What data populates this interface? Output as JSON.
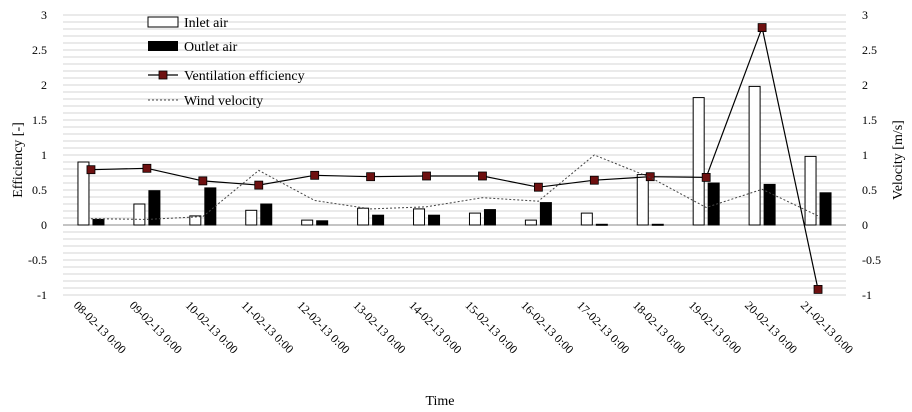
{
  "chart_data": {
    "type": "bar",
    "title": "",
    "xlabel": "Time",
    "ylabel": "Efficiency  [-]",
    "y2label": "Velocity  [m/s]",
    "ylim": [
      -1,
      3
    ],
    "y2lim": [
      -1,
      3
    ],
    "yticks": [
      "-1",
      "-0.5",
      "0",
      "0.5",
      "1",
      "1.5",
      "2",
      "2.5",
      "3"
    ],
    "grid": true,
    "legend_position": "top-left",
    "categories": [
      "08-02-13 0:00",
      "09-02-13 0:00",
      "10-02-13 0:00",
      "11-02-13 0:00",
      "12-02-13 0:00",
      "13-02-13 0:00",
      "14-02-13 0:00",
      "15-02-13 0:00",
      "16-02-13 0:00",
      "17-02-13 0:00",
      "18-02-13 0:00",
      "19-02-13 0:00",
      "20-02-13 0:00",
      "21-02-13 0:00"
    ],
    "series": [
      {
        "name": "Inlet air",
        "kind": "bar",
        "axis": "left",
        "color": "#ffffff",
        "values": [
          0.9,
          0.3,
          0.13,
          0.21,
          0.07,
          0.24,
          0.23,
          0.17,
          0.07,
          0.17,
          0.72,
          1.82,
          1.98,
          0.98
        ]
      },
      {
        "name": "Outlet air",
        "kind": "bar",
        "axis": "left",
        "color": "#000000",
        "values": [
          0.08,
          0.49,
          0.53,
          0.3,
          0.06,
          0.14,
          0.14,
          0.22,
          0.32,
          0.01,
          0.01,
          0.6,
          0.58,
          0.46
        ]
      },
      {
        "name": "Ventilation efficiency",
        "kind": "line",
        "axis": "left",
        "color": "#000000",
        "marker_color": "#6e1010",
        "values": [
          0.79,
          0.81,
          0.63,
          0.57,
          0.71,
          0.69,
          0.7,
          0.7,
          0.54,
          0.64,
          0.69,
          0.68,
          2.82,
          -0.92
        ]
      },
      {
        "name": "Wind velocity",
        "kind": "line",
        "axis": "right",
        "dashed": true,
        "color": "#444444",
        "values": [
          0.09,
          0.08,
          0.12,
          0.78,
          0.35,
          0.23,
          0.26,
          0.39,
          0.34,
          1.0,
          0.68,
          0.25,
          0.51,
          0.13
        ]
      }
    ]
  }
}
